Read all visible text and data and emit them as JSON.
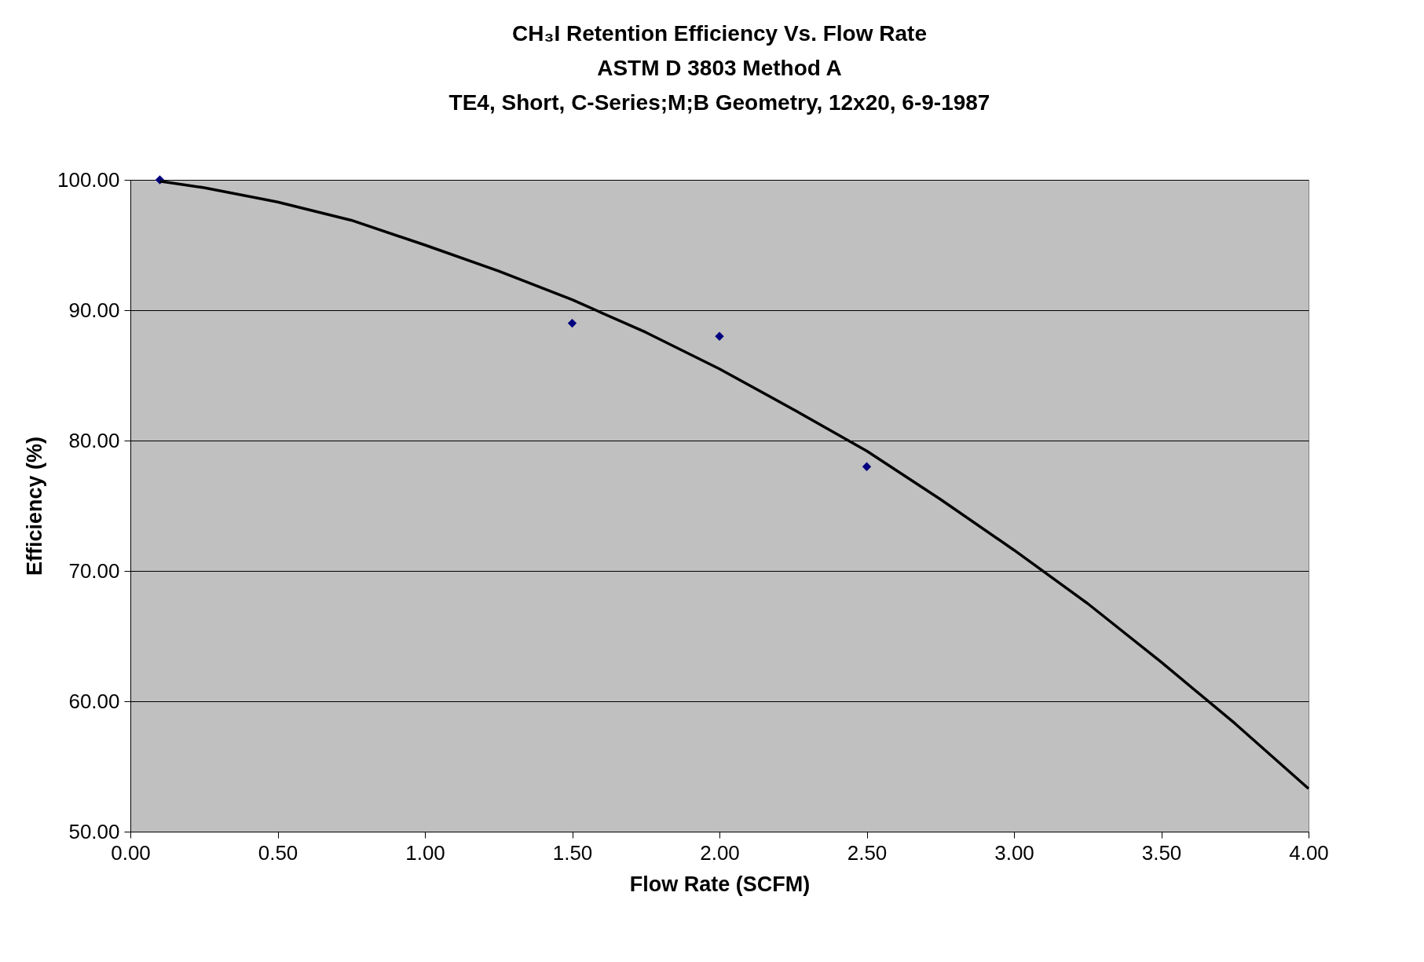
{
  "chart_data": {
    "type": "scatter",
    "title": [
      "CH₃I Retention Efficiency Vs. Flow Rate",
      "ASTM D 3803 Method A",
      "TE4, Short, C-Series;M;B Geometry, 12x20, 6-9-1987"
    ],
    "xlabel": "Flow Rate (SCFM)",
    "ylabel": "Efficiency (%)",
    "xlim": [
      0,
      4
    ],
    "ylim": [
      50,
      100
    ],
    "xticks": [
      {
        "value": 0,
        "label": "0.00"
      },
      {
        "value": 0.5,
        "label": "0.50"
      },
      {
        "value": 1,
        "label": "1.00"
      },
      {
        "value": 1.5,
        "label": "1.50"
      },
      {
        "value": 2,
        "label": "2.00"
      },
      {
        "value": 2.5,
        "label": "2.50"
      },
      {
        "value": 3,
        "label": "3.00"
      },
      {
        "value": 3.5,
        "label": "3.50"
      },
      {
        "value": 4,
        "label": "4.00"
      }
    ],
    "yticks": [
      {
        "value": 50,
        "label": "50.00"
      },
      {
        "value": 60,
        "label": "60.00"
      },
      {
        "value": 70,
        "label": "70.00"
      },
      {
        "value": 80,
        "label": "80.00"
      },
      {
        "value": 90,
        "label": "90.00"
      },
      {
        "value": 100,
        "label": "100.00"
      }
    ],
    "grid": "y",
    "series": [
      {
        "type": "scatter",
        "marker": "diamond",
        "color": "#000080",
        "x": [
          0.1,
          1.5,
          2.0,
          2.5
        ],
        "values": [
          100,
          89,
          88,
          78
        ]
      },
      {
        "type": "line",
        "line_style": "solid",
        "color": "#000000",
        "x": [
          0.1,
          0.25,
          0.5,
          0.75,
          1.0,
          1.25,
          1.5,
          1.75,
          2.0,
          2.25,
          2.5,
          2.75,
          3.0,
          3.25,
          3.5,
          3.75,
          4.0
        ],
        "values": [
          99.9,
          99.4,
          98.3,
          96.9,
          95.0,
          93.0,
          90.8,
          88.3,
          85.5,
          82.4,
          79.2,
          75.5,
          71.6,
          67.5,
          63.0,
          58.3,
          53.3
        ]
      }
    ]
  }
}
